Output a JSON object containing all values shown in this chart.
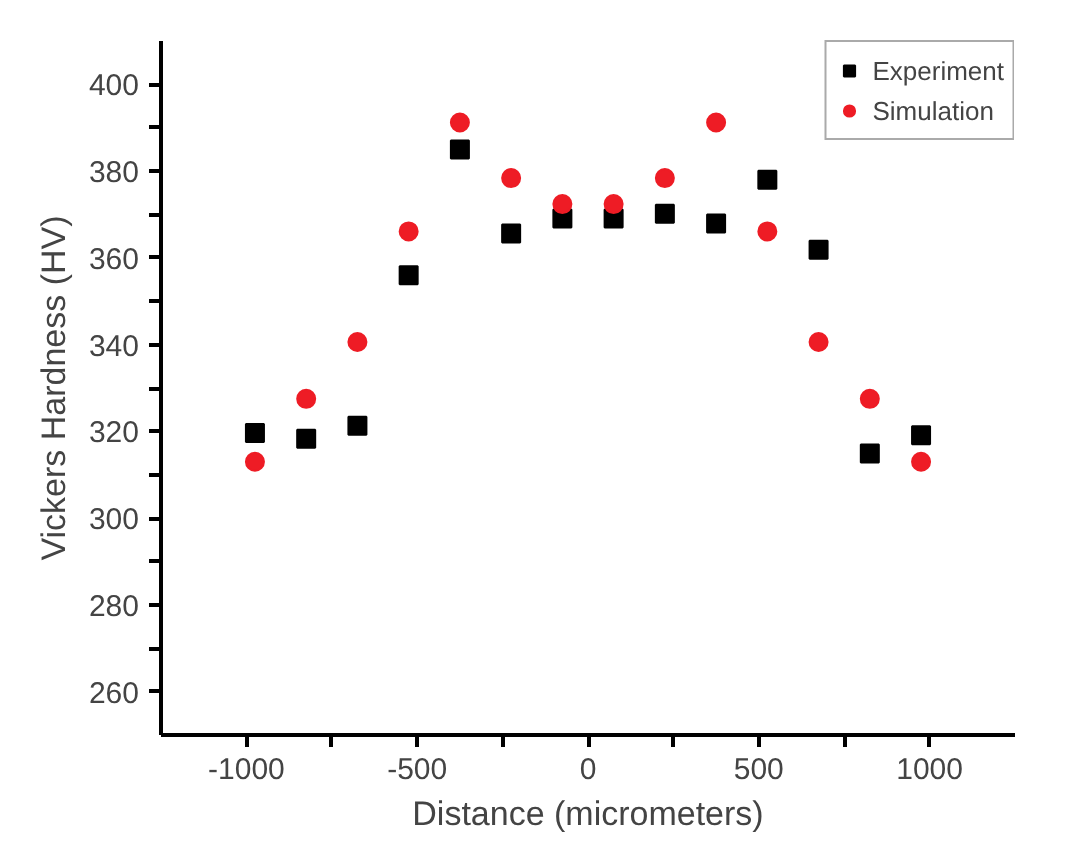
{
  "chart_data": {
    "type": "scatter",
    "xlabel": "Distance (micrometers)",
    "ylabel": "Vickers Hardness (HV)",
    "x": [
      -975,
      -825,
      -675,
      -525,
      -375,
      -225,
      -75,
      75,
      225,
      375,
      525,
      675,
      825,
      975
    ],
    "series": [
      {
        "name": "Experiment",
        "color": "#000000",
        "marker": "square",
        "values": [
          319.6,
          318.3,
          321.3,
          356.0,
          385.0,
          365.6,
          369.1,
          369.1,
          370.2,
          367.9,
          378.0,
          361.9,
          314.9,
          319.1
        ]
      },
      {
        "name": "Simulation",
        "color": "#ee1c25",
        "marker": "circle",
        "values": [
          313.0,
          327.5,
          340.6,
          366.1,
          391.2,
          378.4,
          372.4,
          372.4,
          378.4,
          391.2,
          366.1,
          340.6,
          327.5,
          313.0
        ]
      }
    ],
    "xlim": [
      -1250,
      1250
    ],
    "xticks": [
      -1000,
      {
        "value": -750,
        "label": null
      },
      -500,
      {
        "value": -250,
        "label": null
      },
      0,
      {
        "value": 250,
        "label": null
      },
      500,
      {
        "value": 750,
        "label": null
      },
      1000
    ],
    "ylim": [
      250,
      410
    ],
    "yticks": [
      260,
      {
        "value": 270,
        "label": null
      },
      280,
      {
        "value": 290,
        "label": null
      },
      300,
      {
        "value": 310,
        "label": null
      },
      320,
      {
        "value": 330,
        "label": null
      },
      340,
      {
        "value": 350,
        "label": null
      },
      360,
      {
        "value": 370,
        "label": null
      },
      380,
      {
        "value": 390,
        "label": null
      },
      400
    ],
    "grid": false,
    "legend": "top right"
  }
}
